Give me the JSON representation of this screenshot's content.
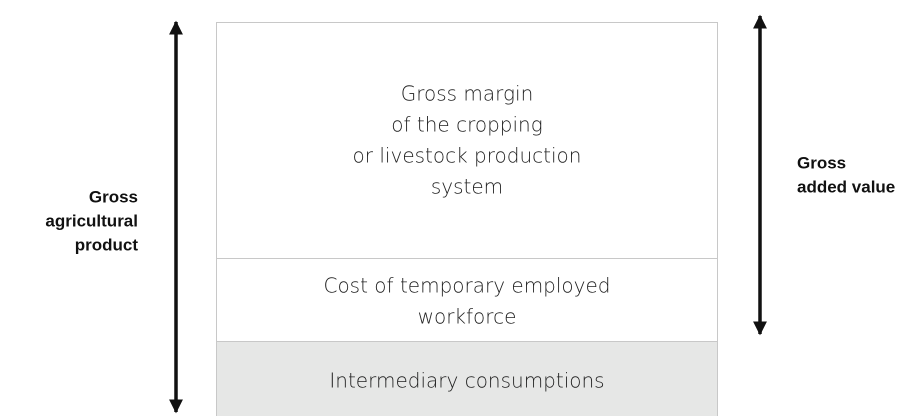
{
  "left_label": {
    "lines": [
      "Gross",
      "agricultural",
      "product"
    ]
  },
  "right_label": {
    "lines": [
      "Gross",
      "added value"
    ]
  },
  "boxes": [
    {
      "lines": [
        "Gross margin",
        "of the cropping",
        "or livestock production",
        "system"
      ]
    },
    {
      "lines": [
        "Cost of temporary employed",
        "workforce"
      ]
    },
    {
      "lines": [
        "Intermediary consumptions"
      ]
    }
  ]
}
